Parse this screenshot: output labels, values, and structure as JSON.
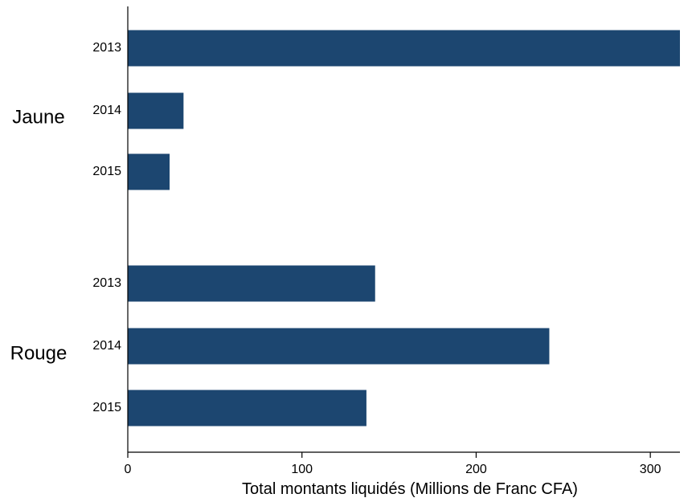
{
  "chart_data": {
    "type": "bar",
    "orientation": "horizontal",
    "groups": [
      {
        "name": "Jaune",
        "categories": [
          "2013",
          "2014",
          "2015"
        ],
        "values": [
          317,
          32,
          24
        ]
      },
      {
        "name": "Rouge",
        "categories": [
          "2013",
          "2014",
          "2015"
        ],
        "values": [
          142,
          242,
          137
        ]
      }
    ],
    "title": "",
    "xlabel": "Total montants liquidés (Millions de Franc CFA)",
    "ylabel": "",
    "xlim": [
      0,
      317
    ],
    "xticks": [
      0,
      100,
      200,
      300
    ],
    "xtick_labels": [
      "0",
      "100",
      "200",
      "300"
    ],
    "grid": false,
    "legend": "none",
    "bar_color": "#1c4670"
  }
}
